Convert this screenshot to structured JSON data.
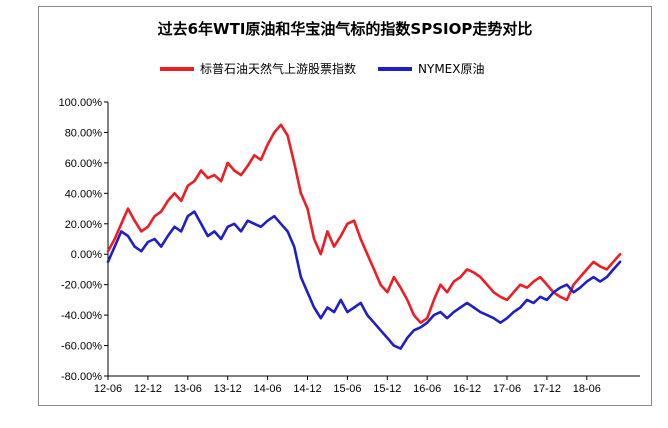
{
  "chart_data": {
    "type": "line",
    "title": "过去6年WTI原油和华宝油气标的指数SPSIOP走势对比",
    "xlabel": "",
    "ylabel": "",
    "ylim": [
      -80,
      100
    ],
    "yticks": [
      "100.00%",
      "80.00%",
      "60.00%",
      "40.00%",
      "20.00%",
      "0.00%",
      "-20.00%",
      "-40.00%",
      "-60.00%",
      "-80.00%"
    ],
    "ytick_values": [
      100,
      80,
      60,
      40,
      20,
      0,
      -20,
      -40,
      -60,
      -80
    ],
    "xticks": [
      "12-06",
      "12-12",
      "13-06",
      "13-12",
      "14-06",
      "14-12",
      "15-06",
      "15-12",
      "16-06",
      "16-12",
      "17-06",
      "17-12",
      "18-06"
    ],
    "xtick_values": [
      0,
      6,
      12,
      18,
      24,
      30,
      36,
      42,
      48,
      54,
      60,
      66,
      72
    ],
    "xlim": [
      0,
      80
    ],
    "legend_position": "top",
    "grid": false,
    "series": [
      {
        "name": "标普石油天然气上游股票指数",
        "color": "#ee1c25",
        "x": [
          0,
          1,
          2,
          3,
          4,
          5,
          6,
          7,
          8,
          9,
          10,
          11,
          12,
          13,
          14,
          15,
          16,
          17,
          18,
          19,
          20,
          21,
          22,
          23,
          24,
          25,
          26,
          27,
          28,
          29,
          30,
          31,
          32,
          33,
          34,
          35,
          36,
          37,
          38,
          39,
          40,
          41,
          42,
          43,
          44,
          45,
          46,
          47,
          48,
          49,
          50,
          51,
          52,
          53,
          54,
          55,
          56,
          57,
          58,
          59,
          60,
          61,
          62,
          63,
          64,
          65,
          66,
          67,
          68,
          69,
          70,
          71,
          72,
          73,
          74,
          75,
          76,
          77
        ],
        "values": [
          2,
          10,
          20,
          30,
          22,
          15,
          18,
          25,
          28,
          35,
          40,
          35,
          45,
          48,
          55,
          50,
          52,
          48,
          60,
          55,
          52,
          58,
          65,
          62,
          72,
          80,
          85,
          78,
          60,
          40,
          30,
          10,
          0,
          15,
          5,
          12,
          20,
          22,
          10,
          0,
          -10,
          -20,
          -25,
          -15,
          -22,
          -30,
          -40,
          -45,
          -42,
          -30,
          -20,
          -25,
          -18,
          -15,
          -10,
          -12,
          -15,
          -20,
          -25,
          -28,
          -30,
          -25,
          -20,
          -22,
          -18,
          -15,
          -20,
          -25,
          -28,
          -30,
          -20,
          -15,
          -10,
          -5,
          -8,
          -10,
          -5,
          0
        ]
      },
      {
        "name": "NYMEX原油",
        "color": "#1f1fc8",
        "x": [
          0,
          1,
          2,
          3,
          4,
          5,
          6,
          7,
          8,
          9,
          10,
          11,
          12,
          13,
          14,
          15,
          16,
          17,
          18,
          19,
          20,
          21,
          22,
          23,
          24,
          25,
          26,
          27,
          28,
          29,
          30,
          31,
          32,
          33,
          34,
          35,
          36,
          37,
          38,
          39,
          40,
          41,
          42,
          43,
          44,
          45,
          46,
          47,
          48,
          49,
          50,
          51,
          52,
          53,
          54,
          55,
          56,
          57,
          58,
          59,
          60,
          61,
          62,
          63,
          64,
          65,
          66,
          67,
          68,
          69,
          70,
          71,
          72,
          73,
          74,
          75,
          76,
          77
        ],
        "values": [
          -5,
          5,
          15,
          12,
          5,
          2,
          8,
          10,
          5,
          12,
          18,
          15,
          25,
          28,
          20,
          12,
          15,
          10,
          18,
          20,
          15,
          22,
          20,
          18,
          22,
          25,
          20,
          15,
          5,
          -15,
          -25,
          -35,
          -42,
          -35,
          -38,
          -30,
          -38,
          -35,
          -32,
          -40,
          -45,
          -50,
          -55,
          -60,
          -62,
          -55,
          -50,
          -48,
          -45,
          -40,
          -38,
          -42,
          -38,
          -35,
          -32,
          -35,
          -38,
          -40,
          -42,
          -45,
          -42,
          -38,
          -35,
          -30,
          -32,
          -28,
          -30,
          -25,
          -22,
          -20,
          -25,
          -22,
          -18,
          -15,
          -18,
          -15,
          -10,
          -5
        ]
      }
    ]
  }
}
